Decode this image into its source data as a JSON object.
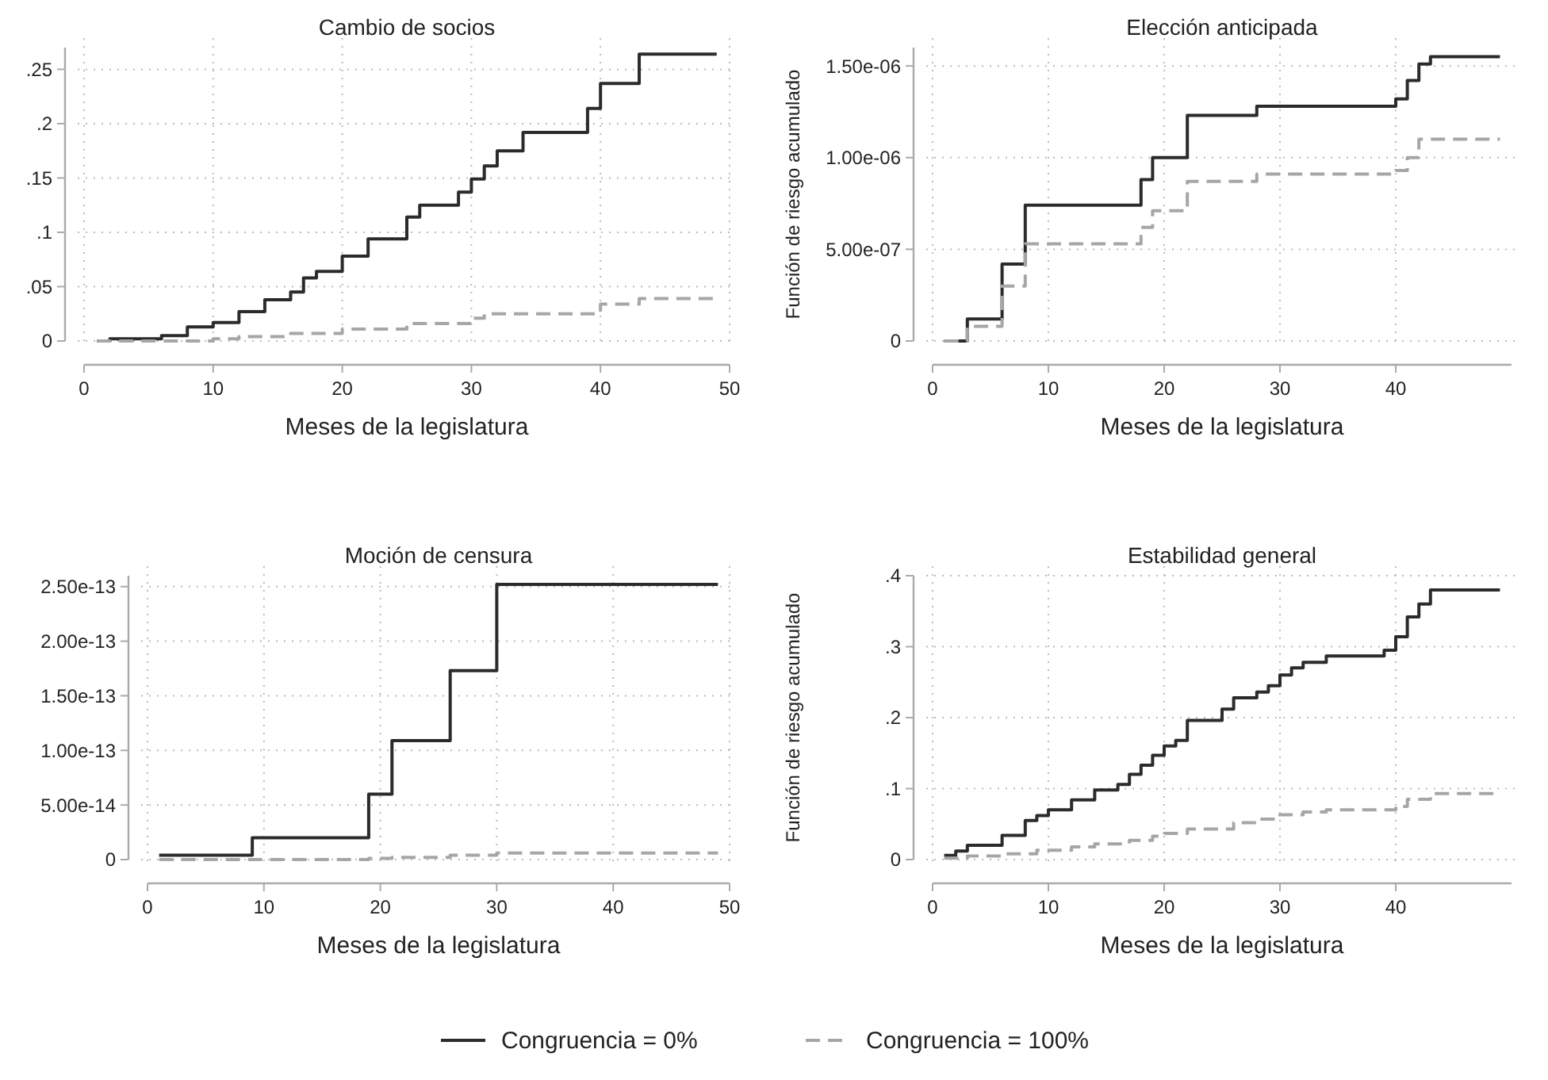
{
  "chart_data": [
    {
      "type": "step",
      "title": "Cambio de socios",
      "xlabel": "Meses de la legislatura",
      "xlim": [
        0,
        50
      ],
      "xticks": [
        0,
        10,
        20,
        30,
        40,
        50
      ],
      "ylim": [
        0,
        0.27
      ],
      "yticks": [
        {
          "value": 0,
          "label": "0"
        },
        {
          "value": 0.05,
          "label": ".05"
        },
        {
          "value": 0.1,
          "label": ".1"
        },
        {
          "value": 0.15,
          "label": ".15"
        },
        {
          "value": 0.2,
          "label": ".2"
        },
        {
          "value": 0.25,
          "label": ".25"
        }
      ],
      "grid": true,
      "legend": "bottom",
      "series": [
        {
          "name": "Congruencia = 0%",
          "color": "#2b2b2b",
          "line_style": "solid",
          "x": [
            1,
            2,
            6,
            8,
            10,
            12,
            14,
            16,
            17,
            18,
            20,
            22,
            25,
            26,
            29,
            30,
            31,
            32,
            34,
            39,
            40,
            43,
            49
          ],
          "values": [
            0,
            0.002,
            0.005,
            0.013,
            0.017,
            0.027,
            0.038,
            0.045,
            0.058,
            0.064,
            0.078,
            0.094,
            0.114,
            0.125,
            0.137,
            0.149,
            0.161,
            0.175,
            0.192,
            0.214,
            0.237,
            0.264,
            0.264
          ]
        },
        {
          "name": "Congruencia = 100%",
          "color": "#a6a6a6",
          "line_style": "dashed",
          "x": [
            1,
            10,
            12,
            16,
            20,
            25,
            30,
            31,
            40,
            43,
            49
          ],
          "values": [
            0,
            0.002,
            0.004,
            0.007,
            0.011,
            0.016,
            0.021,
            0.025,
            0.034,
            0.039,
            0.039
          ]
        }
      ]
    },
    {
      "type": "step",
      "title": "Elección anticipada",
      "xlabel": "Meses de la legislatura",
      "ylabel": "Función de riesgo acumulado",
      "xlim": [
        0,
        50
      ],
      "xticks": [
        0,
        10,
        20,
        30,
        40
      ],
      "ylim": [
        0,
        1.6e-06
      ],
      "yticks": [
        {
          "value": 0,
          "label": "0"
        },
        {
          "value": 5e-07,
          "label": "5.00e-07"
        },
        {
          "value": 1e-06,
          "label": "1.00e-06"
        },
        {
          "value": 1.5e-06,
          "label": "1.50e-06"
        }
      ],
      "grid": true,
      "series": [
        {
          "color": "#2b2b2b",
          "line_style": "solid",
          "x": [
            1,
            3,
            6,
            8,
            18,
            19,
            22,
            28,
            40,
            41,
            42,
            43,
            49
          ],
          "values": [
            0,
            1.2e-07,
            4.2e-07,
            7.4e-07,
            8.8e-07,
            1e-06,
            1.23e-06,
            1.28e-06,
            1.32e-06,
            1.42e-06,
            1.51e-06,
            1.55e-06,
            1.55e-06
          ]
        },
        {
          "color": "#a6a6a6",
          "line_style": "dashed",
          "x": [
            1,
            3,
            6,
            8,
            18,
            19,
            22,
            28,
            40,
            41,
            42,
            49
          ],
          "values": [
            0,
            8e-08,
            3e-07,
            5.3e-07,
            6.2e-07,
            7.1e-07,
            8.7e-07,
            9.1e-07,
            9.3e-07,
            1e-06,
            1.1e-06,
            1.1e-06
          ]
        }
      ]
    },
    {
      "type": "step",
      "title": "Moción de censura",
      "xlabel": "Meses de la legislatura",
      "xlim": [
        0,
        50
      ],
      "xticks": [
        0,
        10,
        20,
        30,
        40,
        50
      ],
      "ylim": [
        0,
        2.6e-13
      ],
      "yticks": [
        {
          "value": 0,
          "label": "0"
        },
        {
          "value": 5e-14,
          "label": "5.00e-14"
        },
        {
          "value": 1e-13,
          "label": "1.00e-13"
        },
        {
          "value": 1.5e-13,
          "label": "1.50e-13"
        },
        {
          "value": 2e-13,
          "label": "2.00e-13"
        },
        {
          "value": 2.5e-13,
          "label": "2.50e-13"
        }
      ],
      "grid": true,
      "series": [
        {
          "color": "#2b2b2b",
          "line_style": "solid",
          "x": [
            1,
            9,
            19,
            21,
            26,
            30,
            49
          ],
          "values": [
            4e-15,
            2e-14,
            6e-14,
            1.09e-13,
            1.73e-13,
            2.52e-13,
            2.52e-13
          ]
        },
        {
          "color": "#a6a6a6",
          "line_style": "dashed",
          "x": [
            1,
            19,
            21,
            26,
            30,
            49
          ],
          "values": [
            0,
            1e-15,
            2e-15,
            4e-15,
            6e-15,
            6e-15
          ]
        }
      ]
    },
    {
      "type": "step",
      "title": "Estabilidad general",
      "xlabel": "Meses de la legislatura",
      "ylabel": "Función de riesgo acumulado",
      "xlim": [
        0,
        50
      ],
      "xticks": [
        0,
        10,
        20,
        30,
        40
      ],
      "ylim": [
        0,
        0.4
      ],
      "yticks": [
        {
          "value": 0,
          "label": "0"
        },
        {
          "value": 0.1,
          "label": ".1"
        },
        {
          "value": 0.2,
          "label": ".2"
        },
        {
          "value": 0.3,
          "label": ".3"
        },
        {
          "value": 0.4,
          "label": ".4"
        }
      ],
      "grid": true,
      "series": [
        {
          "color": "#2b2b2b",
          "line_style": "solid",
          "x": [
            1,
            2,
            3,
            6,
            8,
            9,
            10,
            12,
            14,
            16,
            17,
            18,
            19,
            20,
            21,
            22,
            25,
            26,
            28,
            29,
            30,
            31,
            32,
            34,
            39,
            40,
            41,
            42,
            43,
            49
          ],
          "values": [
            0.006,
            0.012,
            0.02,
            0.034,
            0.055,
            0.062,
            0.07,
            0.084,
            0.098,
            0.106,
            0.12,
            0.133,
            0.147,
            0.16,
            0.168,
            0.196,
            0.212,
            0.228,
            0.236,
            0.245,
            0.26,
            0.27,
            0.278,
            0.287,
            0.295,
            0.314,
            0.342,
            0.36,
            0.38,
            0.38
          ]
        },
        {
          "color": "#a6a6a6",
          "line_style": "dashed",
          "x": [
            1,
            3,
            6,
            9,
            12,
            14,
            17,
            19,
            20,
            22,
            26,
            28,
            30,
            32,
            34,
            40,
            41,
            43,
            49
          ],
          "values": [
            0.002,
            0.005,
            0.008,
            0.013,
            0.018,
            0.022,
            0.027,
            0.033,
            0.037,
            0.043,
            0.052,
            0.057,
            0.063,
            0.067,
            0.07,
            0.075,
            0.085,
            0.093,
            0.095
          ]
        }
      ]
    }
  ]
}
